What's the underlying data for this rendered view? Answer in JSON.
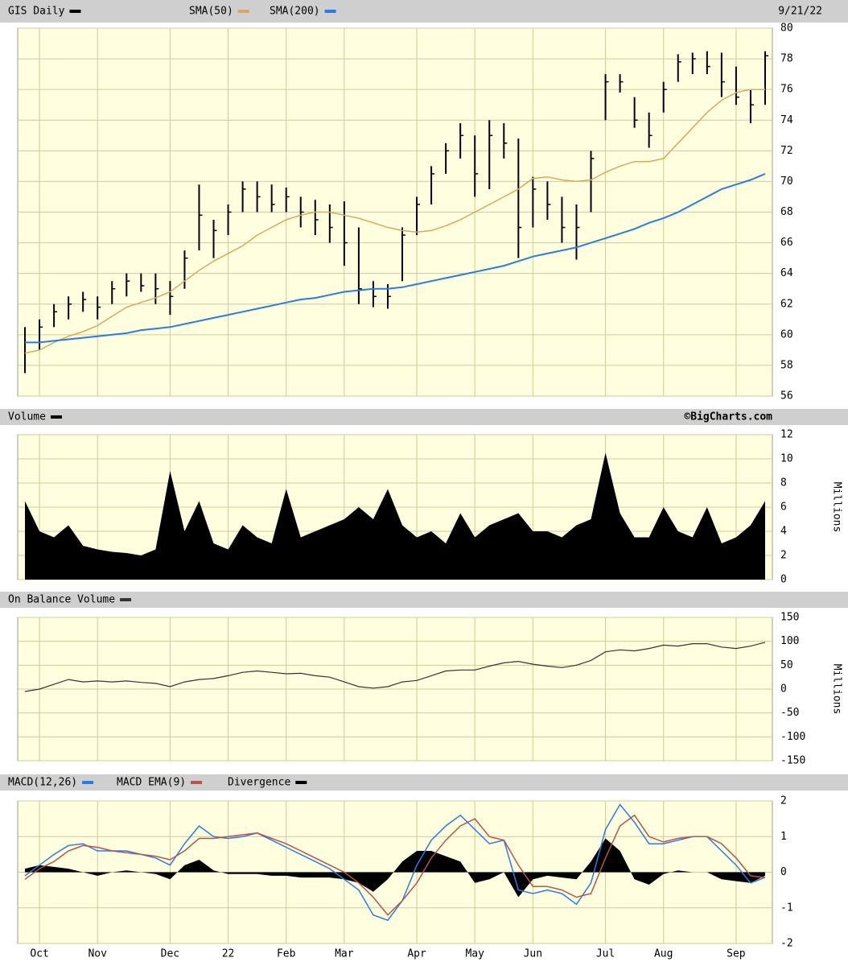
{
  "chart_data": [
    {
      "type": "ohlc",
      "date": "9/21/22",
      "ylim": [
        56,
        80
      ],
      "yticks": [
        56,
        58,
        60,
        62,
        64,
        66,
        68,
        70,
        72,
        74,
        76,
        78,
        80
      ],
      "grid": true,
      "series": [
        {
          "name": "GIS Daily",
          "color": "#000000",
          "high": [
            60.5,
            61,
            62,
            62.5,
            62.8,
            62.5,
            63.5,
            64,
            64,
            64,
            63.5,
            65.5,
            69.8,
            67.5,
            68.5,
            70,
            70,
            69.8,
            69.6,
            69,
            68.8,
            68.5,
            68.7,
            67,
            63.5,
            63.3,
            67,
            69,
            71,
            72.5,
            73.8,
            73,
            74,
            73.8,
            72.8,
            70.3,
            70,
            69,
            68.5,
            72,
            77,
            77,
            75.5,
            74.5,
            76.5,
            78.3,
            78.4,
            78.5,
            78.4,
            77.5,
            76,
            78.5
          ],
          "low": [
            57.5,
            59,
            60.5,
            61,
            61.5,
            61,
            62,
            62.5,
            62.8,
            62,
            61.3,
            63,
            65.5,
            65,
            66.5,
            68,
            68,
            68,
            68,
            67,
            66.5,
            66,
            64.5,
            62,
            61.8,
            61.7,
            63.5,
            66.5,
            68.5,
            70.5,
            71.5,
            69,
            69.5,
            71.5,
            65,
            67,
            67.5,
            66,
            64.9,
            68,
            74,
            75.8,
            73.5,
            72.2,
            74.5,
            76.5,
            77,
            77,
            75.5,
            75,
            73.8,
            75
          ],
          "close": [
            59.5,
            60.5,
            61.5,
            62,
            62.3,
            61.8,
            63,
            63.5,
            63.2,
            63,
            62.5,
            65,
            67.8,
            66.8,
            68,
            69.5,
            69,
            68.5,
            69,
            68,
            67.5,
            67,
            66,
            63,
            62.5,
            62.5,
            66.5,
            68.5,
            70.5,
            72,
            73,
            70.5,
            73,
            72.5,
            67,
            69.5,
            68.5,
            67,
            67,
            71.5,
            76.5,
            76.5,
            74,
            73,
            76,
            77.8,
            78,
            77.5,
            76.5,
            75.5,
            75,
            78.2
          ]
        },
        {
          "name": "SMA(50)",
          "color": "#d9a85b",
          "values": [
            58.8,
            59,
            59.5,
            59.9,
            60.2,
            60.6,
            61.2,
            61.8,
            62.1,
            62.4,
            62.8,
            63.5,
            64.2,
            64.8,
            65.3,
            65.8,
            66.5,
            67,
            67.5,
            67.8,
            68,
            68,
            67.8,
            67.6,
            67.3,
            67,
            66.8,
            66.7,
            66.8,
            67.1,
            67.5,
            68,
            68.5,
            69,
            69.5,
            70.2,
            70.3,
            70.1,
            70,
            70.1,
            70.6,
            71,
            71.3,
            71.3,
            71.5,
            72.5,
            73.5,
            74.5,
            75.3,
            75.8,
            76,
            76
          ]
        },
        {
          "name": "SMA(200)",
          "color": "#2a7be4",
          "values": [
            59.5,
            59.5,
            59.6,
            59.7,
            59.8,
            59.9,
            60,
            60.1,
            60.3,
            60.4,
            60.5,
            60.7,
            60.9,
            61.1,
            61.3,
            61.5,
            61.7,
            61.9,
            62.1,
            62.3,
            62.4,
            62.6,
            62.8,
            62.9,
            63,
            63,
            63.1,
            63.3,
            63.5,
            63.7,
            63.9,
            64.1,
            64.3,
            64.5,
            64.8,
            65.1,
            65.3,
            65.5,
            65.7,
            66,
            66.3,
            66.6,
            66.9,
            67.3,
            67.6,
            68,
            68.5,
            69,
            69.5,
            69.8,
            70.1,
            70.5
          ]
        }
      ]
    },
    {
      "type": "area",
      "credit": "©BigCharts.com",
      "y_label": "Millions",
      "ylim": [
        0,
        12
      ],
      "yticks": [
        0,
        2,
        4,
        6,
        8,
        10,
        12
      ],
      "grid": true,
      "series": [
        {
          "name": "Volume",
          "color": "#000000",
          "values": [
            6.5,
            4,
            3.5,
            4.5,
            2.8,
            2.5,
            2.3,
            2.2,
            2,
            2.5,
            9,
            4,
            6.5,
            3,
            2.5,
            4.5,
            3.5,
            3,
            7.5,
            3.5,
            4,
            4.5,
            5,
            6,
            5,
            7.5,
            4.5,
            3.5,
            4,
            3,
            5.5,
            3.5,
            4.5,
            5,
            5.5,
            4,
            4,
            3.5,
            4.5,
            5,
            10.5,
            5.5,
            3.5,
            3.5,
            6,
            4,
            3.5,
            6,
            3,
            3.5,
            4.5,
            6.5
          ]
        }
      ]
    },
    {
      "type": "line",
      "y_label": "Millions",
      "ylim": [
        -150,
        150
      ],
      "yticks": [
        -150,
        -100,
        -50,
        0,
        50,
        100,
        150
      ],
      "grid": true,
      "series": [
        {
          "name": "On Balance Volume",
          "color": "#333333",
          "values": [
            -5,
            0,
            10,
            20,
            15,
            17,
            15,
            17,
            14,
            12,
            5,
            15,
            20,
            22,
            28,
            35,
            38,
            35,
            32,
            33,
            28,
            25,
            15,
            5,
            2,
            5,
            15,
            18,
            28,
            38,
            40,
            40,
            48,
            55,
            58,
            52,
            48,
            45,
            50,
            60,
            78,
            82,
            80,
            85,
            92,
            90,
            95,
            95,
            88,
            85,
            90,
            98
          ]
        }
      ]
    },
    {
      "type": "macd",
      "ylim": [
        -2,
        2
      ],
      "yticks": [
        -2,
        -1,
        0,
        1,
        2
      ],
      "grid": true,
      "categories": [
        null,
        "Oct",
        null,
        null,
        null,
        "Nov",
        null,
        null,
        null,
        null,
        "Dec",
        null,
        null,
        null,
        "22",
        null,
        null,
        null,
        "Feb",
        null,
        null,
        null,
        "Mar",
        null,
        null,
        null,
        null,
        "Apr",
        null,
        null,
        null,
        "May",
        null,
        null,
        null,
        "Jun",
        null,
        null,
        null,
        null,
        "Jul",
        null,
        null,
        null,
        "Aug",
        null,
        null,
        null,
        null,
        "Sep",
        null,
        null
      ],
      "series": [
        {
          "name": "MACD(12,26)",
          "color": "#2a7be4",
          "values": [
            -0.1,
            0.2,
            0.5,
            0.75,
            0.8,
            0.6,
            0.6,
            0.6,
            0.5,
            0.4,
            0.2,
            0.8,
            1.3,
            1,
            0.95,
            1,
            1.1,
            0.9,
            0.7,
            0.5,
            0.3,
            0.1,
            -0.2,
            -0.5,
            -1.2,
            -1.35,
            -0.8,
            0.2,
            0.9,
            1.3,
            1.6,
            1.2,
            0.8,
            0.9,
            -0.5,
            -0.6,
            -0.5,
            -0.6,
            -0.9,
            -0.3,
            1.2,
            1.9,
            1.4,
            0.8,
            0.8,
            0.9,
            1,
            1,
            0.6,
            0.2,
            -0.3,
            -0.15
          ]
        },
        {
          "name": "MACD EMA(9)",
          "color": "#b5534c",
          "values": [
            -0.2,
            0.1,
            0.3,
            0.6,
            0.75,
            0.7,
            0.6,
            0.55,
            0.5,
            0.45,
            0.35,
            0.6,
            0.95,
            0.95,
            1,
            1.05,
            1.1,
            0.95,
            0.8,
            0.6,
            0.4,
            0.2,
            0,
            -0.3,
            -0.7,
            -1.2,
            -0.8,
            -0.3,
            0.4,
            0.9,
            1.3,
            1.5,
            1,
            0.9,
            0.2,
            -0.4,
            -0.4,
            -0.5,
            -0.7,
            -0.6,
            0.4,
            1.3,
            1.6,
            1,
            0.85,
            0.95,
            1,
            1,
            0.8,
            0.4,
            -0.1,
            -0.15
          ]
        },
        {
          "name": "Divergence",
          "color": "#000000",
          "kind": "area",
          "values": [
            0.1,
            0.2,
            0.15,
            0.1,
            0,
            -0.1,
            0,
            0.05,
            0,
            -0.05,
            -0.2,
            0.2,
            0.35,
            0.05,
            -0.05,
            -0.05,
            -0.05,
            -0.1,
            -0.1,
            -0.15,
            -0.15,
            -0.15,
            -0.2,
            -0.3,
            -0.55,
            -0.2,
            0.3,
            0.6,
            0.6,
            0.45,
            0.3,
            -0.3,
            -0.2,
            0,
            -0.7,
            -0.2,
            -0.1,
            -0.15,
            -0.2,
            0.3,
            0.95,
            0.6,
            -0.2,
            -0.35,
            -0.05,
            0.05,
            0,
            0,
            -0.2,
            -0.25,
            -0.3,
            -0.1
          ]
        }
      ]
    }
  ]
}
